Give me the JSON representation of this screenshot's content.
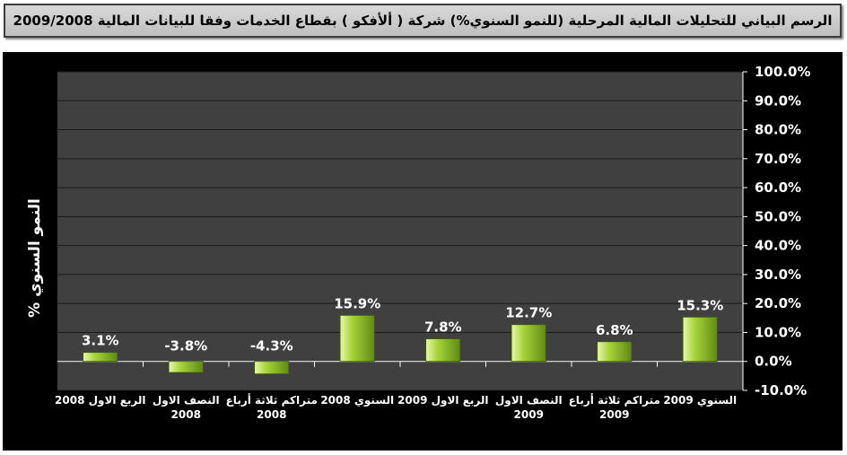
{
  "header": {
    "title": "الرسم البياني للتحليلات المالية المرحلية (للنمو السنوي%) شركة ( ألأفكو ) بقطاع الخدمات وفقا للبيانات المالية 2009/2008"
  },
  "chart_data": {
    "type": "bar",
    "ylabel": "% النمو السنوي",
    "ylim": [
      -0.1,
      1.0
    ],
    "ytick_step": 0.1,
    "yticks": [
      "100.0%",
      "90.0%",
      "80.0%",
      "70.0%",
      "60.0%",
      "50.0%",
      "40.0%",
      "30.0%",
      "20.0%",
      "10.0%",
      "0.0%",
      "-10.0%"
    ],
    "categories": [
      [
        "2008 الربع الاول"
      ],
      [
        "النصف الاول",
        "2008"
      ],
      [
        "متراكم ثلاثة أرباع",
        "2008"
      ],
      [
        "السنوي 2008"
      ],
      [
        "2009 الربع الاول"
      ],
      [
        "النصف الاول",
        "2009"
      ],
      [
        "متراكم ثلاثة أرباع",
        "2009"
      ],
      [
        "السنوي 2009"
      ]
    ],
    "values": [
      0.031,
      -0.038,
      -0.043,
      0.159,
      0.078,
      0.127,
      0.068,
      0.153
    ],
    "data_labels": [
      "3.1%",
      "-3.8%",
      "-4.3%",
      "15.9%",
      "7.8%",
      "12.7%",
      "6.8%",
      "15.3%"
    ],
    "axis_position": "right",
    "grid": true,
    "legend": "none",
    "colors": {
      "panel_bg": "#000000",
      "plot_bg": "#404040",
      "grid": "#1a1a1a",
      "bar_light": "#e9f7b0",
      "bar_mid": "#a6d23a",
      "bar_dark": "#5f8a12",
      "text": "#ffffff"
    }
  }
}
